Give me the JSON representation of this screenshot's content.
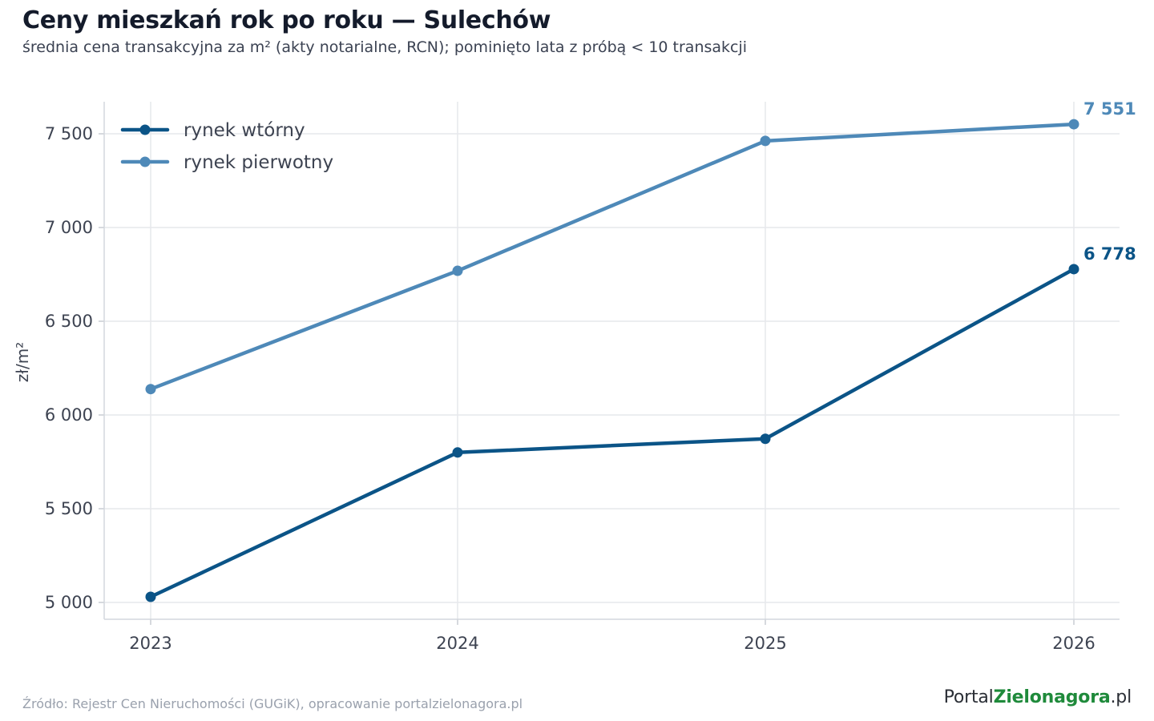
{
  "header": {
    "title": "Ceny mieszkań rok po roku — Sulechów",
    "subtitle": "średnia cena transakcyjna za m² (akty notarialne, RCN); pominięto lata z próbą < 10 transakcji"
  },
  "footer": {
    "source": "Źródło: Rejestr Cen Nieruchomości (GUGiK), opracowanie portalzielonagora.pl",
    "logo_part1": "Portal",
    "logo_part2": "Zielonagora",
    "logo_part3": ".pl"
  },
  "colors": {
    "rynek_wtorny": "#0b5487",
    "rynek_pierwotny": "#4e89b8",
    "grid": "#e6e8ec",
    "text": "#3d4351"
  },
  "chart_data": {
    "type": "line",
    "title": "Ceny mieszkań rok po roku — Sulechów",
    "subtitle": "średnia cena transakcyjna za m² (akty notarialne, RCN); pominięto lata z próbą < 10 transakcji",
    "xlabel": "",
    "ylabel": "zł/m²",
    "x": [
      "2023",
      "2024",
      "2025",
      "2026"
    ],
    "ylim": [
      4910,
      7680
    ],
    "yticks": [
      5000,
      5500,
      6000,
      6500,
      7000,
      7500
    ],
    "ytick_labels": [
      "5 000",
      "5 500",
      "6 000",
      "6 500",
      "7 000",
      "7 500"
    ],
    "grid": true,
    "legend_position": "top-left",
    "series": [
      {
        "name": "rynek wtórny",
        "color": "#0b5487",
        "values": [
          5030,
          5800,
          5873,
          6778
        ],
        "end_label": "6 778"
      },
      {
        "name": "rynek pierwotny",
        "color": "#4e89b8",
        "values": [
          6138,
          6769,
          7462,
          7551
        ],
        "end_label": "7 551"
      }
    ]
  }
}
